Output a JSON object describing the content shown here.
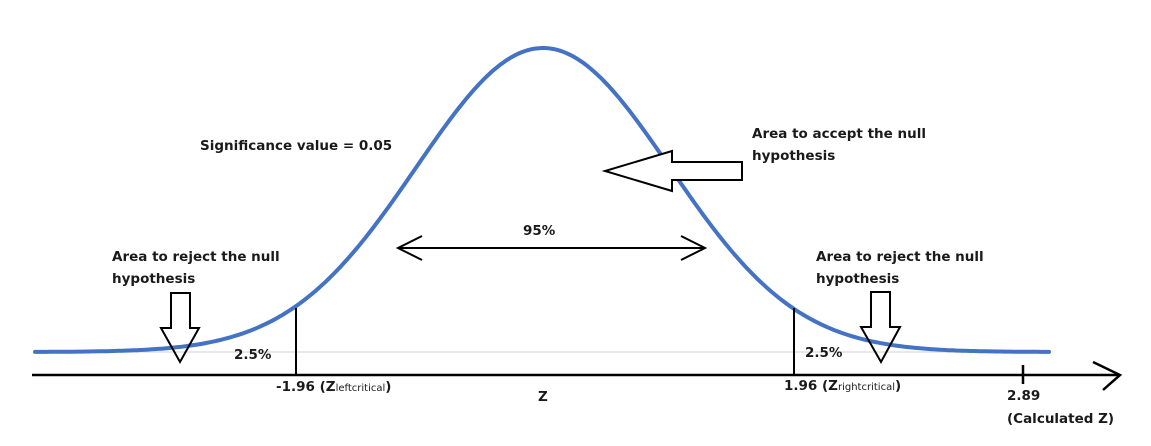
{
  "significance_label": "Significance value = 0.05",
  "accept_label": [
    "Area to accept the null",
    "hypothesis"
  ],
  "reject_left_label": [
    "Area to reject the null",
    "hypothesis"
  ],
  "reject_right_label": [
    "Area to reject the null",
    "hypothesis"
  ],
  "center_percent": "95%",
  "left_tail_percent": "2.5%",
  "right_tail_percent": "2.5%",
  "left_critical": {
    "value": "-1.96",
    "open": " (Z",
    "sub": "leftcritical",
    "close": ")"
  },
  "right_critical": {
    "value": "1.96",
    "open": " (Z",
    "sub": "rightcritical",
    "close": ")"
  },
  "axis_label": "Z",
  "calculated": {
    "value": "2.89",
    "label": "(Calculated Z)"
  },
  "colors": {
    "curve": "#4472c4",
    "ink": "#000000",
    "baseline": "#e0e0e0"
  }
}
